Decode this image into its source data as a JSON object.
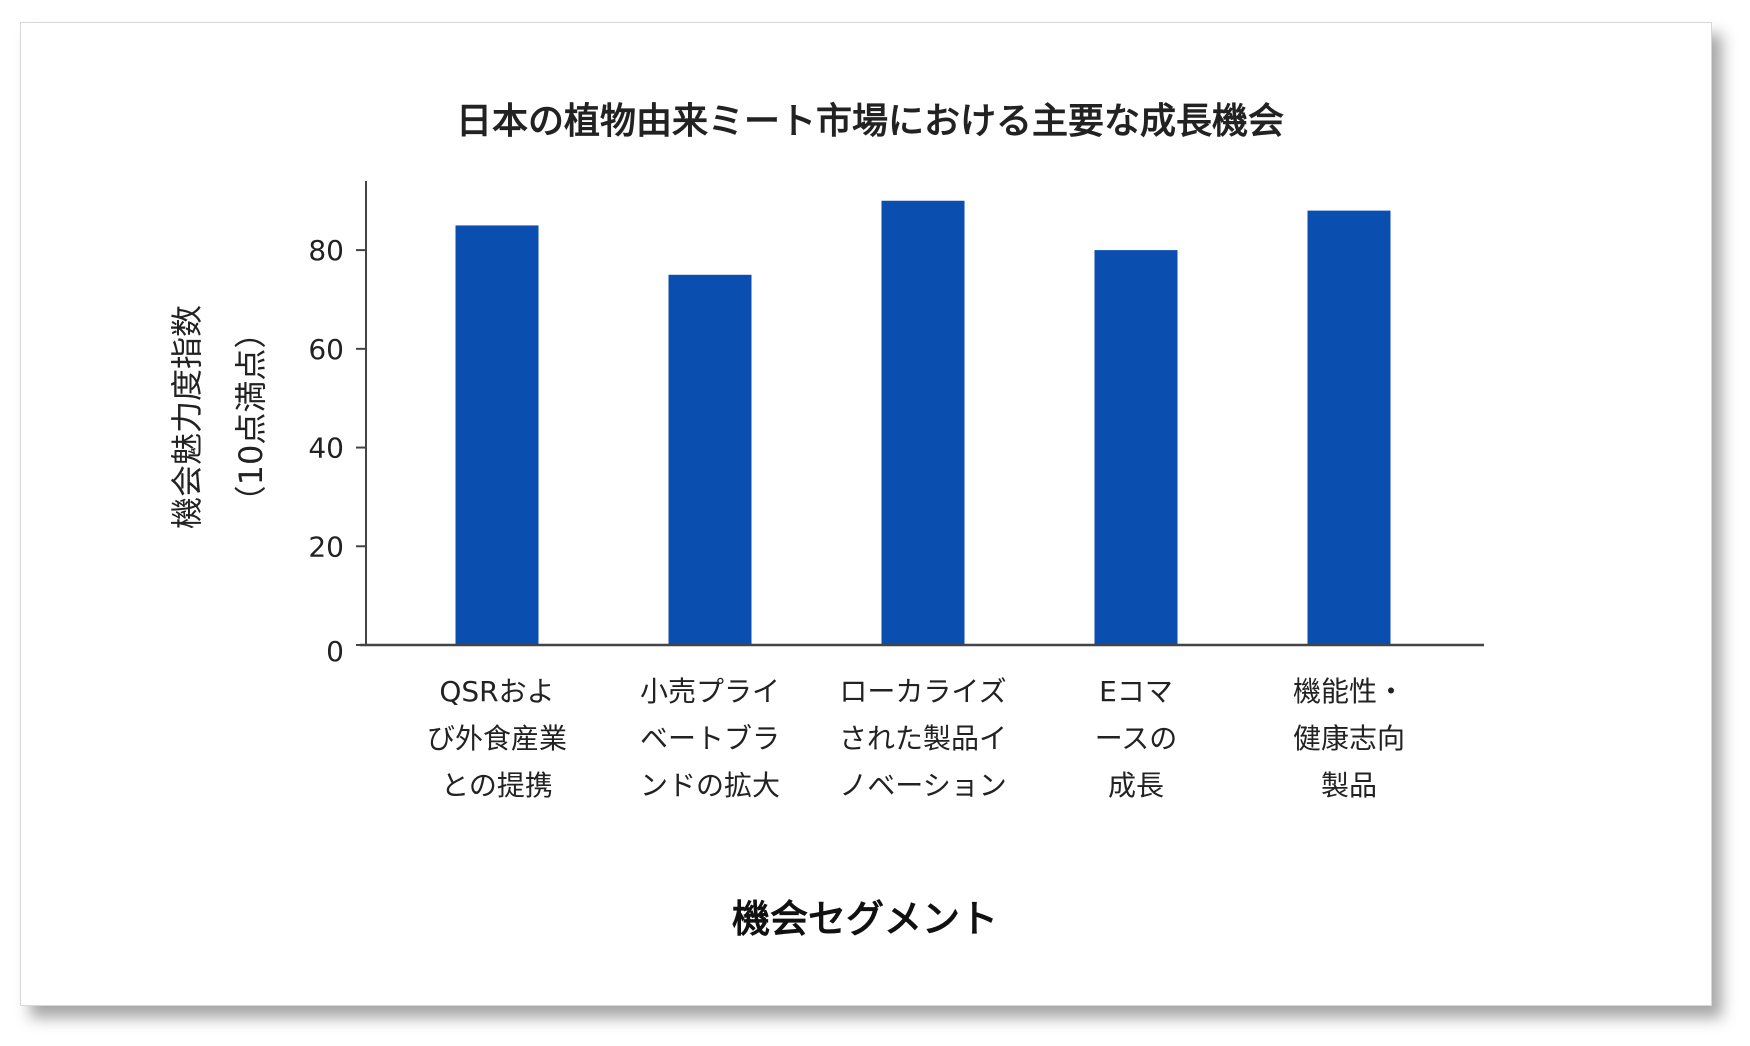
{
  "chart_data": {
    "type": "bar",
    "title": "日本の植物由来ミート市場における主要な成長機会",
    "xlabel": "機会セグメント",
    "ylabel": "機会魅力度指数\n（10点満点）",
    "categories": [
      "QSRおよ\nび外食産業\nとの提携",
      "小売プライ\nベートブラ\nンドの拡大",
      "ローカライズ\nされた製品イ\nノベーション",
      "Eコマ\nースの\n成長",
      "機能性・\n健康志向\n製品"
    ],
    "values": [
      85,
      75,
      90,
      80,
      88
    ],
    "ylim": [
      0,
      94
    ],
    "yticks": [
      0,
      20,
      40,
      60,
      80
    ],
    "grid": false,
    "bar_color": "#0a4fb0"
  }
}
